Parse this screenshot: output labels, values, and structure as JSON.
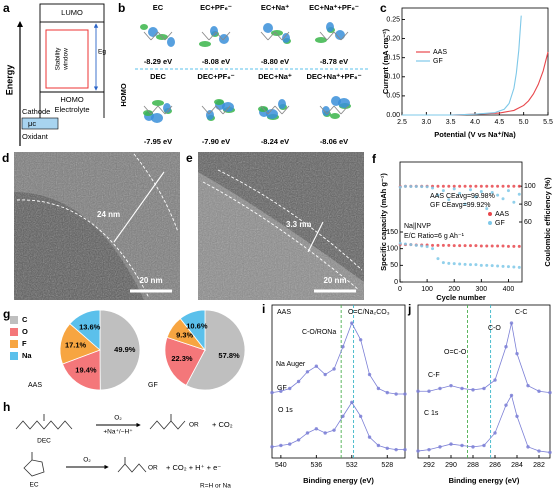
{
  "diagrams": {
    "a": {
      "label": "a",
      "axis": "Energy",
      "lumo": "LUMO",
      "stability": "Stability",
      "window": "window",
      "eg": "Eg",
      "homo": "HOMO",
      "electrolyte": "Electrolyte",
      "cathode": "Cathode",
      "mu": "μc",
      "oxidant": "Oxidant"
    },
    "b": {
      "label": "b",
      "homo": "HOMO",
      "molecules": [
        {
          "name": "EC",
          "energy": "-8.29 eV"
        },
        {
          "name": "EC+PF₆⁻",
          "energy": "-8.08 eV"
        },
        {
          "name": "EC+Na⁺",
          "energy": "-8.80 eV"
        },
        {
          "name": "EC+Na⁺+PF₆⁻",
          "energy": "-8.78 eV"
        },
        {
          "name": "DEC",
          "energy": "-7.95 eV"
        },
        {
          "name": "DEC+PF₆⁻",
          "energy": "-7.90 eV"
        },
        {
          "name": "DEC+Na⁺",
          "energy": "-8.24 eV"
        },
        {
          "name": "DEC+Na⁺+PF₆⁻",
          "energy": "-8.06 eV"
        }
      ]
    },
    "d": {
      "label": "d",
      "thickness": "24 nm",
      "scale": "20 nm"
    },
    "e": {
      "label": "e",
      "thickness": "3.3 nm",
      "scale": "20 nm"
    },
    "h": {
      "label": "h",
      "r1_reagent": "O₂",
      "r1_cond": "+Na⁺/−H⁺",
      "r1_start": "DEC",
      "r1_group": "OR",
      "r1_byproduct": "+  CO₂",
      "r2_reagent": "O₂",
      "r2_start": "EC",
      "r2_group": "OR",
      "r2_byproduct": "+ CO₂ + H⁺ + e⁻",
      "note": "R=H or Na"
    }
  },
  "chart_data": [
    {
      "type": "line",
      "label": "c",
      "xlabel": "Potential (V vs Na⁺/Na)",
      "ylabel": "Current (mA cm⁻²)",
      "xlim": [
        2.5,
        5.5
      ],
      "xticks": [
        2.5,
        {
          "value": 3,
          "label": "3.0"
        },
        3.5,
        {
          "value": 4,
          "label": "4.0"
        },
        4.5,
        {
          "value": 5,
          "label": "5.0"
        },
        5.5
      ],
      "ylim": [
        0,
        0.28
      ],
      "yticks": [
        {
          "value": 0,
          "label": "0.00"
        },
        {
          "value": 0.05,
          "label": "0.05"
        },
        {
          "value": 0.1,
          "label": "0.10"
        },
        {
          "value": 0.15,
          "label": "0.15"
        },
        {
          "value": 0.2,
          "label": "0.20"
        },
        {
          "value": 0.25,
          "label": "0.25"
        }
      ],
      "legend": "center left",
      "series": [
        {
          "name": "AAS",
          "color": "#e8474c",
          "style": "line",
          "x": [
            2.5,
            3.0,
            3.5,
            4.0,
            4.5,
            4.8,
            5.0,
            5.1,
            5.2,
            5.3,
            5.4,
            5.5
          ],
          "values": [
            0,
            0,
            0,
            0.002,
            0.005,
            0.012,
            0.025,
            0.037,
            0.055,
            0.08,
            0.115,
            0.165
          ]
        },
        {
          "name": "GF",
          "color": "#7ec8e8",
          "style": "line",
          "x": [
            2.5,
            3.0,
            3.5,
            4.0,
            4.4,
            4.6,
            4.7,
            4.8,
            4.85,
            4.9,
            4.95
          ],
          "values": [
            0,
            0,
            0,
            0.002,
            0.006,
            0.015,
            0.03,
            0.07,
            0.11,
            0.17,
            0.26
          ]
        }
      ]
    },
    {
      "type": "scatter",
      "label": "f",
      "xlabel": "Cycle number",
      "ylabel": "Specific capacity (mAh g⁻¹)",
      "y2label": "Coulombic efficiency (%)",
      "xlim": [
        0,
        450
      ],
      "xticks": [
        0,
        100,
        200,
        300,
        400
      ],
      "ylim": [
        0,
        360
      ],
      "yticks": [
        0,
        50,
        100,
        150
      ],
      "y2lim": [
        -7,
        127
      ],
      "y2ticks": [
        60,
        80,
        100
      ],
      "legend": "center right",
      "annotations": [
        "AAS CEavg=99.98%",
        "GF CEavg=99.92%",
        "Na||NVP",
        "E/C Ratio=6 g Ah⁻¹"
      ],
      "x": [
        1,
        20,
        40,
        60,
        80,
        100,
        120,
        140,
        160,
        180,
        200,
        220,
        240,
        260,
        280,
        300,
        320,
        340,
        360,
        380,
        400,
        420,
        440
      ],
      "series": [
        {
          "name": "AAS",
          "color": "#e8474c",
          "style": "markers",
          "values": [
            113,
            112,
            112,
            111,
            111,
            111,
            110,
            110,
            110,
            110,
            109,
            109,
            109,
            109,
            109,
            108,
            108,
            108,
            108,
            108,
            107,
            107,
            107
          ]
        },
        {
          "name": "GF",
          "color": "#7ec8e8",
          "style": "markers",
          "values": [
            116,
            114,
            112,
            110,
            108,
            106,
            100,
            70,
            58,
            56,
            55,
            54,
            53,
            52,
            52,
            50,
            50,
            49,
            48,
            47,
            46,
            45,
            44
          ]
        },
        {
          "color": "#e8474c",
          "style": "markers",
          "axis": "y2",
          "values": [
            99.5,
            99.9,
            99.9,
            99.9,
            99.9,
            99.9,
            99.9,
            99.9,
            99.9,
            99.9,
            99.9,
            99.9,
            99.9,
            99.9,
            99.9,
            99.9,
            99.9,
            99.9,
            99.9,
            99.9,
            99.9,
            99.9,
            99.9
          ]
        },
        {
          "color": "#7ec8e8",
          "style": "markers",
          "axis": "y2",
          "values": [
            99,
            99.8,
            99.7,
            99.6,
            99.5,
            99.4,
            98,
            90,
            95,
            85,
            97,
            92,
            80,
            96,
            88,
            94,
            75,
            93,
            90,
            86,
            95,
            82,
            91
          ]
        }
      ]
    },
    {
      "type": "pie",
      "label": "g",
      "categories": [
        "C",
        "O",
        "F",
        "Na"
      ],
      "colors": [
        "#bfbfbf",
        "#f4777a",
        "#f7a541",
        "#5bc0eb"
      ],
      "pies": [
        {
          "name": "AAS",
          "values": [
            49.9,
            19.4,
            17.1,
            13.6
          ],
          "value_labels": [
            "49.9%",
            "19.4%",
            "17.1%",
            "13.6%"
          ]
        },
        {
          "name": "GF",
          "values": [
            57.8,
            22.3,
            9.3,
            10.6
          ],
          "value_labels": [
            "57.8%",
            "22.3%",
            "9.3%",
            "10.6%"
          ]
        }
      ]
    },
    {
      "type": "line",
      "label": "i",
      "xlabel": "Binding energy (eV)",
      "xlim": [
        541,
        526
      ],
      "xticks": [
        540,
        536,
        532,
        528
      ],
      "ylim": [
        0,
        110
      ],
      "annotations": [
        "C-O/RONa",
        "O=C/Na₂CO₃",
        "Na Auger",
        "O 1s"
      ],
      "vlines": [
        533.2,
        531.8
      ],
      "x": [
        541,
        540,
        539,
        538,
        537,
        536,
        535,
        534,
        533,
        532,
        531,
        530,
        529,
        528,
        527,
        526
      ],
      "series": [
        {
          "name": "AAS",
          "color": "#7b7fd6",
          "style": "markers+line",
          "values": [
            47,
            48,
            50,
            55,
            62,
            66,
            60,
            64,
            80,
            97,
            85,
            60,
            50,
            47,
            46,
            46
          ]
        },
        {
          "name": "GF",
          "color": "#7b7fd6",
          "style": "markers+line",
          "values": [
            8,
            9,
            10,
            13,
            18,
            21,
            18,
            20,
            30,
            40,
            30,
            15,
            9,
            7,
            6,
            6
          ]
        }
      ]
    },
    {
      "type": "line",
      "label": "j",
      "xlabel": "Binding energy (eV)",
      "xlim": [
        293,
        281
      ],
      "xticks": [
        292,
        290,
        288,
        286,
        284,
        282
      ],
      "ylim": [
        0,
        110
      ],
      "annotations": [
        "O=C-O",
        "C-O",
        "C-C",
        "C-F",
        "C 1s"
      ],
      "vlines": [
        288.5,
        286.4
      ],
      "x": [
        293,
        292,
        291,
        290,
        289,
        288,
        287,
        286,
        285,
        284.5,
        284,
        283,
        282,
        281
      ],
      "series": [
        {
          "color": "#7b7fd6",
          "style": "markers+line",
          "values": [
            48,
            48,
            50,
            52,
            50,
            49,
            50,
            56,
            80,
            97,
            75,
            52,
            48,
            47
          ]
        },
        {
          "color": "#7b7fd6",
          "style": "markers+line",
          "values": [
            5,
            6,
            8,
            10,
            9,
            8,
            9,
            18,
            38,
            45,
            30,
            8,
            5,
            4
          ]
        }
      ]
    }
  ]
}
